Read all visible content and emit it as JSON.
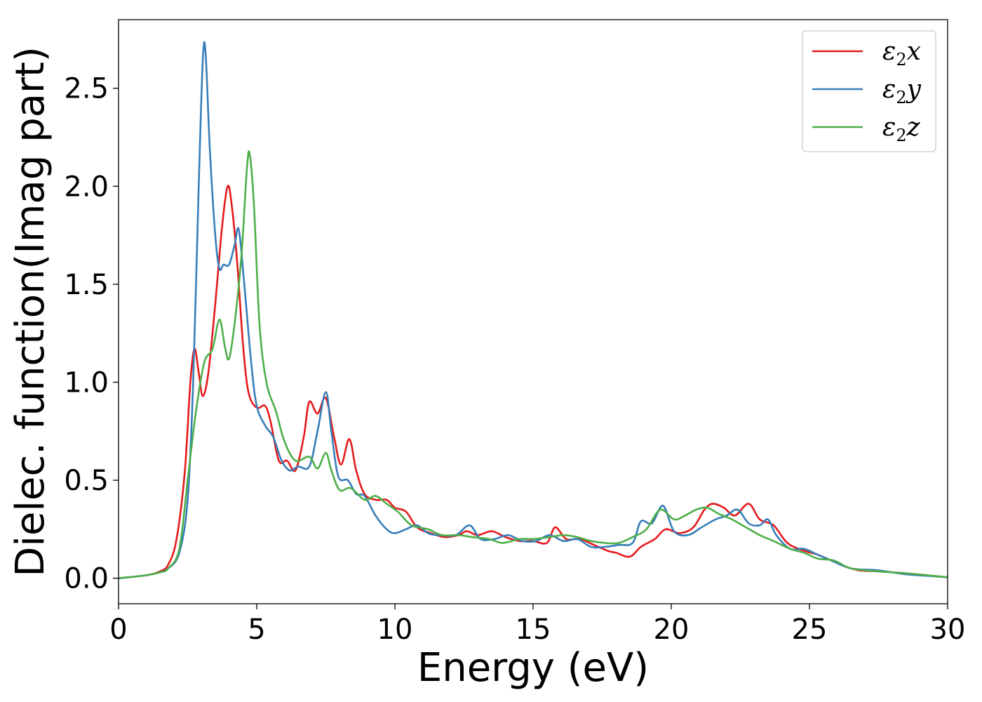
{
  "chart_data": {
    "type": "line",
    "xlabel": "Energy (eV)",
    "ylabel": "Dielec. function(Imag part)",
    "xlim": [
      0,
      30
    ],
    "ylim": [
      -0.13,
      2.85
    ],
    "xticks": [
      0,
      5,
      10,
      15,
      20,
      25,
      30
    ],
    "yticks": [
      0.0,
      0.5,
      1.0,
      1.5,
      2.0,
      2.5
    ],
    "xtick_labels": [
      "0",
      "5",
      "10",
      "15",
      "20",
      "25",
      "30"
    ],
    "ytick_labels": [
      "0.0",
      "0.5",
      "1.0",
      "1.5",
      "2.0",
      "2.5"
    ],
    "grid": false,
    "legend_position": "top-right",
    "series": [
      {
        "name": "ε₂x",
        "legend_main": "ε",
        "legend_sub": "2",
        "legend_tail": "x",
        "color": "#e41a1c",
        "points": [
          [
            0,
            0
          ],
          [
            1,
            0.015
          ],
          [
            1.5,
            0.035
          ],
          [
            1.8,
            0.07
          ],
          [
            2.1,
            0.2
          ],
          [
            2.4,
            0.55
          ],
          [
            2.6,
            1.0
          ],
          [
            2.75,
            1.17
          ],
          [
            2.9,
            1.05
          ],
          [
            3.05,
            0.93
          ],
          [
            3.25,
            1.05
          ],
          [
            3.5,
            1.4
          ],
          [
            3.75,
            1.8
          ],
          [
            3.95,
            2.0
          ],
          [
            4.1,
            1.9
          ],
          [
            4.3,
            1.6
          ],
          [
            4.5,
            1.2
          ],
          [
            4.7,
            0.95
          ],
          [
            5.0,
            0.87
          ],
          [
            5.3,
            0.88
          ],
          [
            5.5,
            0.8
          ],
          [
            5.8,
            0.6
          ],
          [
            6.1,
            0.6
          ],
          [
            6.4,
            0.55
          ],
          [
            6.7,
            0.72
          ],
          [
            6.9,
            0.9
          ],
          [
            7.2,
            0.84
          ],
          [
            7.5,
            0.92
          ],
          [
            7.8,
            0.72
          ],
          [
            8.05,
            0.58
          ],
          [
            8.35,
            0.71
          ],
          [
            8.6,
            0.55
          ],
          [
            8.9,
            0.43
          ],
          [
            9.3,
            0.4
          ],
          [
            9.7,
            0.4
          ],
          [
            10.0,
            0.36
          ],
          [
            10.4,
            0.34
          ],
          [
            10.8,
            0.26
          ],
          [
            11.3,
            0.23
          ],
          [
            11.8,
            0.21
          ],
          [
            12.3,
            0.22
          ],
          [
            12.6,
            0.24
          ],
          [
            13.0,
            0.22
          ],
          [
            13.5,
            0.24
          ],
          [
            14.0,
            0.21
          ],
          [
            14.5,
            0.19
          ],
          [
            15.0,
            0.19
          ],
          [
            15.5,
            0.18
          ],
          [
            15.8,
            0.26
          ],
          [
            16.2,
            0.2
          ],
          [
            16.7,
            0.2
          ],
          [
            17.2,
            0.17
          ],
          [
            17.7,
            0.14
          ],
          [
            18.0,
            0.13
          ],
          [
            18.5,
            0.11
          ],
          [
            18.9,
            0.16
          ],
          [
            19.4,
            0.2
          ],
          [
            19.8,
            0.25
          ],
          [
            20.3,
            0.23
          ],
          [
            20.8,
            0.26
          ],
          [
            21.2,
            0.35
          ],
          [
            21.5,
            0.38
          ],
          [
            21.9,
            0.36
          ],
          [
            22.3,
            0.32
          ],
          [
            22.8,
            0.38
          ],
          [
            23.2,
            0.3
          ],
          [
            23.7,
            0.27
          ],
          [
            24.2,
            0.18
          ],
          [
            24.8,
            0.14
          ],
          [
            25.3,
            0.12
          ],
          [
            25.8,
            0.09
          ],
          [
            26.3,
            0.06
          ],
          [
            26.8,
            0.04
          ],
          [
            27.5,
            0.035
          ],
          [
            28.5,
            0.025
          ],
          [
            29.5,
            0.012
          ],
          [
            30,
            0.005
          ]
        ]
      },
      {
        "name": "ε₂y",
        "legend_main": "ε",
        "legend_sub": "2",
        "legend_tail": "y",
        "color": "#377eb8",
        "points": [
          [
            0,
            0
          ],
          [
            1,
            0.015
          ],
          [
            1.5,
            0.03
          ],
          [
            1.8,
            0.05
          ],
          [
            2.2,
            0.13
          ],
          [
            2.5,
            0.4
          ],
          [
            2.7,
            1.0
          ],
          [
            2.9,
            2.0
          ],
          [
            3.05,
            2.65
          ],
          [
            3.15,
            2.68
          ],
          [
            3.3,
            2.2
          ],
          [
            3.5,
            1.75
          ],
          [
            3.65,
            1.58
          ],
          [
            3.8,
            1.6
          ],
          [
            4.0,
            1.6
          ],
          [
            4.2,
            1.7
          ],
          [
            4.35,
            1.78
          ],
          [
            4.55,
            1.5
          ],
          [
            4.8,
            1.1
          ],
          [
            5.0,
            0.88
          ],
          [
            5.3,
            0.78
          ],
          [
            5.6,
            0.72
          ],
          [
            5.9,
            0.6
          ],
          [
            6.2,
            0.55
          ],
          [
            6.5,
            0.57
          ],
          [
            6.9,
            0.57
          ],
          [
            7.2,
            0.75
          ],
          [
            7.5,
            0.95
          ],
          [
            7.7,
            0.75
          ],
          [
            7.95,
            0.52
          ],
          [
            8.3,
            0.5
          ],
          [
            8.6,
            0.43
          ],
          [
            8.9,
            0.42
          ],
          [
            9.3,
            0.32
          ],
          [
            9.7,
            0.25
          ],
          [
            10.0,
            0.23
          ],
          [
            10.4,
            0.25
          ],
          [
            10.8,
            0.27
          ],
          [
            11.2,
            0.23
          ],
          [
            11.6,
            0.22
          ],
          [
            12.2,
            0.22
          ],
          [
            12.7,
            0.27
          ],
          [
            13.1,
            0.2
          ],
          [
            13.6,
            0.2
          ],
          [
            14.1,
            0.22
          ],
          [
            14.6,
            0.19
          ],
          [
            15.1,
            0.19
          ],
          [
            15.6,
            0.22
          ],
          [
            16.1,
            0.19
          ],
          [
            16.6,
            0.2
          ],
          [
            17.1,
            0.16
          ],
          [
            17.6,
            0.16
          ],
          [
            18.1,
            0.17
          ],
          [
            18.6,
            0.18
          ],
          [
            18.9,
            0.29
          ],
          [
            19.3,
            0.28
          ],
          [
            19.7,
            0.37
          ],
          [
            20.1,
            0.24
          ],
          [
            20.6,
            0.22
          ],
          [
            21.1,
            0.26
          ],
          [
            21.6,
            0.3
          ],
          [
            22.0,
            0.32
          ],
          [
            22.4,
            0.35
          ],
          [
            22.8,
            0.28
          ],
          [
            23.2,
            0.27
          ],
          [
            23.5,
            0.3
          ],
          [
            23.8,
            0.22
          ],
          [
            24.3,
            0.15
          ],
          [
            24.8,
            0.15
          ],
          [
            25.3,
            0.12
          ],
          [
            25.8,
            0.09
          ],
          [
            26.5,
            0.05
          ],
          [
            27.5,
            0.04
          ],
          [
            28.5,
            0.02
          ],
          [
            29.5,
            0.01
          ],
          [
            30,
            0.005
          ]
        ]
      },
      {
        "name": "ε₂z",
        "legend_main": "ε",
        "legend_sub": "2",
        "legend_tail": "z",
        "color": "#4daf4a",
        "points": [
          [
            0,
            0
          ],
          [
            1,
            0.015
          ],
          [
            1.5,
            0.03
          ],
          [
            1.8,
            0.05
          ],
          [
            2.2,
            0.15
          ],
          [
            2.5,
            0.5
          ],
          [
            2.8,
            0.85
          ],
          [
            3.1,
            1.1
          ],
          [
            3.4,
            1.17
          ],
          [
            3.65,
            1.32
          ],
          [
            3.85,
            1.18
          ],
          [
            4.0,
            1.12
          ],
          [
            4.2,
            1.3
          ],
          [
            4.45,
            1.65
          ],
          [
            4.65,
            2.1
          ],
          [
            4.75,
            2.16
          ],
          [
            4.9,
            1.9
          ],
          [
            5.1,
            1.3
          ],
          [
            5.35,
            1.0
          ],
          [
            5.7,
            0.85
          ],
          [
            6.0,
            0.7
          ],
          [
            6.4,
            0.6
          ],
          [
            6.9,
            0.62
          ],
          [
            7.2,
            0.56
          ],
          [
            7.5,
            0.64
          ],
          [
            7.7,
            0.55
          ],
          [
            8.0,
            0.45
          ],
          [
            8.4,
            0.46
          ],
          [
            8.9,
            0.4
          ],
          [
            9.3,
            0.42
          ],
          [
            9.7,
            0.38
          ],
          [
            10.1,
            0.34
          ],
          [
            10.6,
            0.27
          ],
          [
            11.2,
            0.25
          ],
          [
            11.7,
            0.22
          ],
          [
            12.3,
            0.22
          ],
          [
            12.8,
            0.21
          ],
          [
            13.4,
            0.2
          ],
          [
            13.9,
            0.18
          ],
          [
            14.5,
            0.2
          ],
          [
            15.0,
            0.2
          ],
          [
            15.6,
            0.21
          ],
          [
            16.1,
            0.22
          ],
          [
            16.6,
            0.21
          ],
          [
            17.1,
            0.19
          ],
          [
            17.6,
            0.18
          ],
          [
            18.1,
            0.18
          ],
          [
            18.6,
            0.21
          ],
          [
            19.1,
            0.25
          ],
          [
            19.6,
            0.35
          ],
          [
            20.1,
            0.3
          ],
          [
            20.5,
            0.32
          ],
          [
            20.9,
            0.35
          ],
          [
            21.3,
            0.36
          ],
          [
            21.7,
            0.33
          ],
          [
            22.2,
            0.3
          ],
          [
            22.7,
            0.26
          ],
          [
            23.2,
            0.22
          ],
          [
            23.7,
            0.19
          ],
          [
            24.3,
            0.15
          ],
          [
            24.8,
            0.13
          ],
          [
            25.3,
            0.1
          ],
          [
            25.9,
            0.09
          ],
          [
            26.5,
            0.05
          ],
          [
            27.5,
            0.035
          ],
          [
            28.5,
            0.025
          ],
          [
            29.5,
            0.012
          ],
          [
            30,
            0.005
          ]
        ]
      }
    ]
  }
}
